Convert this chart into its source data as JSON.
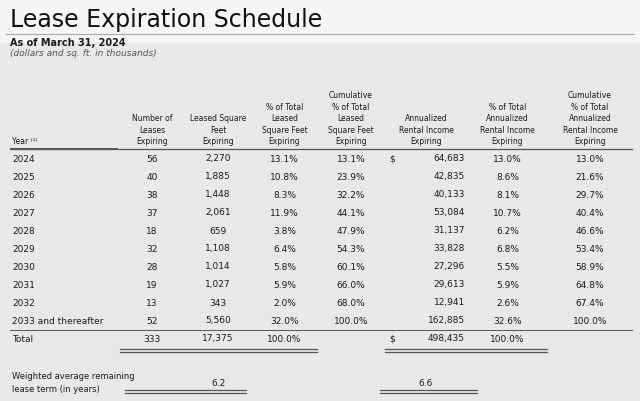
{
  "title": "Lease Expiration Schedule",
  "subtitle1": "As of March 31, 2024",
  "subtitle2": "(dollars and sq. ft. in thousands)",
  "col_headers_line1": [
    "",
    "Number of",
    "Leased Square",
    "% of Total",
    "Cumulative",
    "Annualized",
    "% of Total",
    "Cumulative"
  ],
  "col_headers_line2": [
    "",
    "Leases",
    "Feet",
    "Leased",
    "% of Total",
    "Rental Income",
    "Annualized",
    "% of Total"
  ],
  "col_headers_line3": [
    "Year⁽¹⁾",
    "Expiring",
    "Expiring",
    "Square Feet",
    "Leased",
    "Expiring",
    "Rental Income",
    "Annualized"
  ],
  "col_headers_line4": [
    "",
    "",
    "",
    "Expiring",
    "Square Feet",
    "",
    "Expiring",
    "Rental Income"
  ],
  "col_headers_line5": [
    "",
    "",
    "",
    "",
    "Expiring",
    "",
    "",
    "Expiring"
  ],
  "rows": [
    [
      "2024",
      "56",
      "2,270",
      "13.1%",
      "13.1%",
      "$  64,683",
      "13.0%",
      "13.0%"
    ],
    [
      "2025",
      "40",
      "1,885",
      "10.8%",
      "23.9%",
      "42,835",
      "8.6%",
      "21.6%"
    ],
    [
      "2026",
      "38",
      "1,448",
      "8.3%",
      "32.2%",
      "40,133",
      "8.1%",
      "29.7%"
    ],
    [
      "2027",
      "37",
      "2,061",
      "11.9%",
      "44.1%",
      "53,084",
      "10.7%",
      "40.4%"
    ],
    [
      "2028",
      "18",
      "659",
      "3.8%",
      "47.9%",
      "31,137",
      "6.2%",
      "46.6%"
    ],
    [
      "2029",
      "32",
      "1,108",
      "6.4%",
      "54.3%",
      "33,828",
      "6.8%",
      "53.4%"
    ],
    [
      "2030",
      "28",
      "1,014",
      "5.8%",
      "60.1%",
      "27,296",
      "5.5%",
      "58.9%"
    ],
    [
      "2031",
      "19",
      "1,027",
      "5.9%",
      "66.0%",
      "29,613",
      "5.9%",
      "64.8%"
    ],
    [
      "2032",
      "13",
      "343",
      "2.0%",
      "68.0%",
      "12,941",
      "2.6%",
      "67.4%"
    ],
    [
      "2033 and thereafter",
      "52",
      "5,560",
      "32.0%",
      "100.0%",
      "162,885",
      "32.6%",
      "100.0%"
    ],
    [
      "Total",
      "333",
      "17,375",
      "100.0%",
      "",
      "$  498,435",
      "100.0%",
      ""
    ]
  ],
  "stripe_color": "#e8e8e8",
  "bg_color": "#f5f5f5",
  "text_color": "#1a1a1a",
  "line_color": "#555555",
  "weighted_avg_label": "Weighted average remaining\nlease term (in years)",
  "weighted_avg_sq": "6.2",
  "weighted_avg_inc": "6.6"
}
